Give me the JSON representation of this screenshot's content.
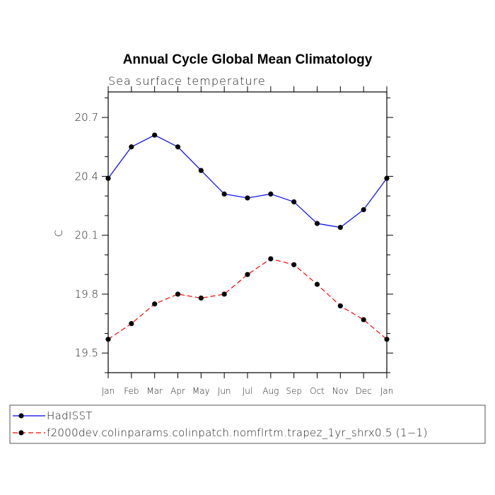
{
  "chart_data": {
    "type": "line",
    "title": "Annual Cycle Global Mean Climatology",
    "subtitle": "Sea surface temperature",
    "xlabel": "",
    "ylabel": "C",
    "categories": [
      "Jan",
      "Feb",
      "Mar",
      "Apr",
      "May",
      "Jun",
      "Jul",
      "Aug",
      "Sep",
      "Oct",
      "Nov",
      "Dec",
      "Jan"
    ],
    "yticks": [
      19.5,
      19.8,
      20.1,
      20.4,
      20.7
    ],
    "ytick_labels": [
      "19.5",
      "19.8",
      "20.1",
      "20.4",
      "20.7"
    ],
    "ylim": [
      19.4,
      20.83
    ],
    "grid": false,
    "legend_position": "bottom",
    "series": [
      {
        "name": "HadISST",
        "color": "#0000ff",
        "line_style": "solid",
        "marker": "dot",
        "values": [
          20.39,
          20.55,
          20.61,
          20.55,
          20.43,
          20.31,
          20.29,
          20.31,
          20.27,
          20.16,
          20.14,
          20.23,
          20.39
        ]
      },
      {
        "name": "f2000dev.colinparams.colinpatch.nomflrtm.trapez_1yr_shrx0.5 (1−1)",
        "color": "#ff0000",
        "line_style": "dashed",
        "marker": "dot",
        "values": [
          19.57,
          19.65,
          19.75,
          19.8,
          19.78,
          19.8,
          19.9,
          19.98,
          19.95,
          19.85,
          19.74,
          19.67,
          19.57
        ]
      }
    ]
  }
}
